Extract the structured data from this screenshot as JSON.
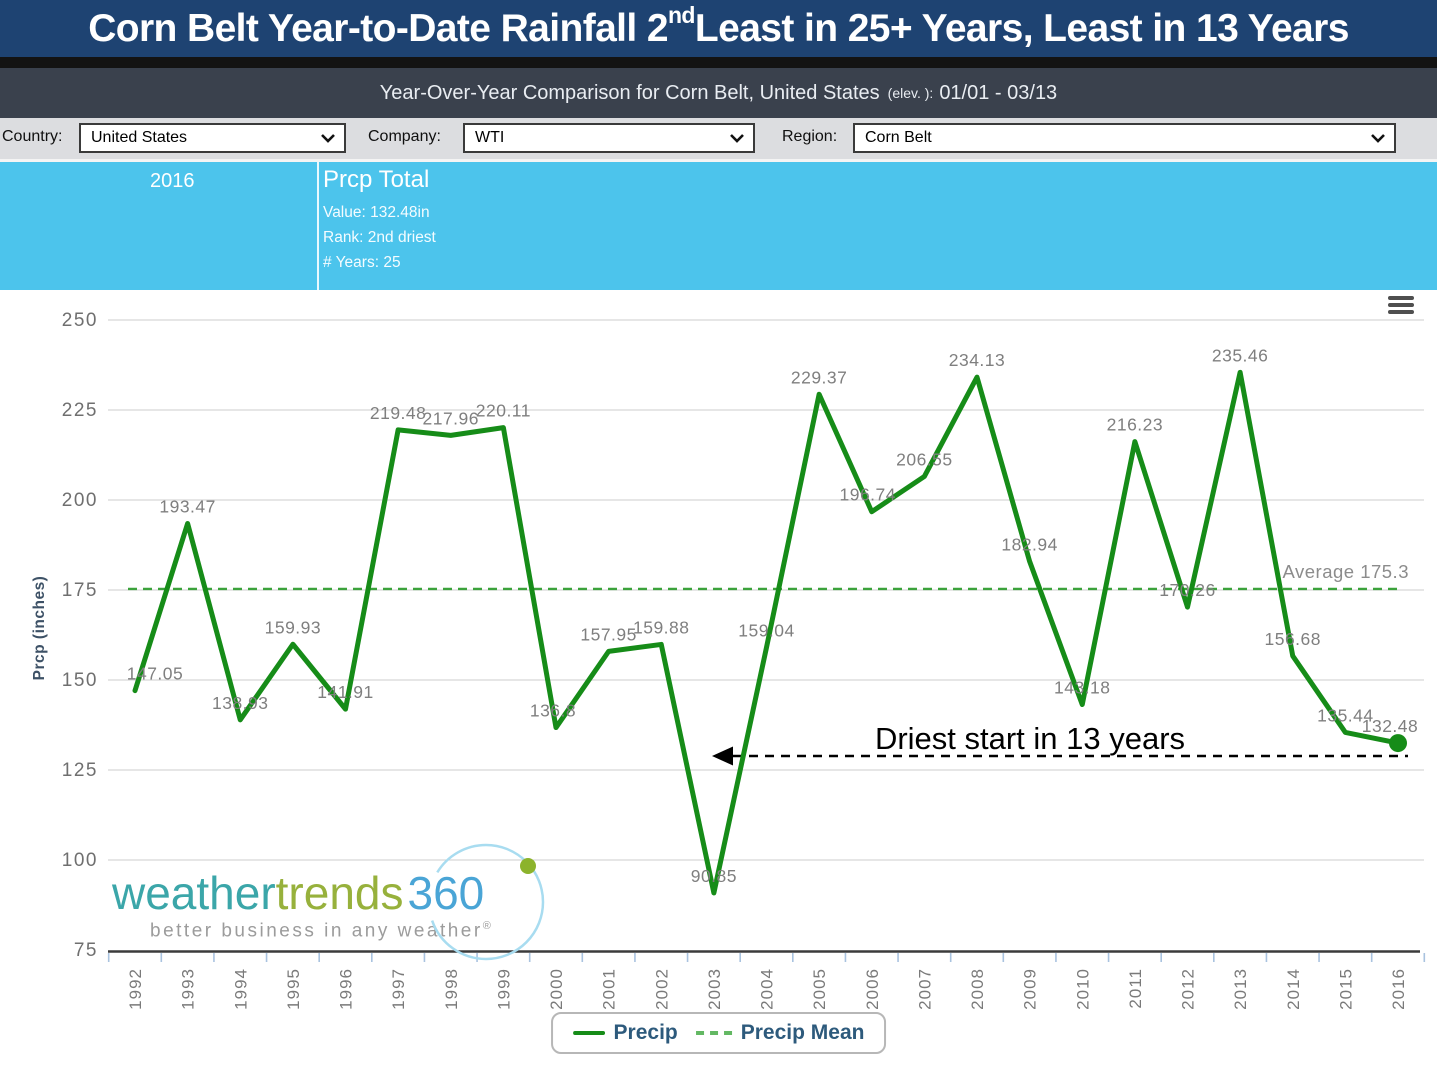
{
  "title": {
    "part1": "Corn Belt Year-to-Date Rainfall 2",
    "sup": "nd",
    "part2": " Least in 25+ Years, Least in 13 Years"
  },
  "subheader": {
    "text": "Year-Over-Year Comparison for Corn Belt, United States",
    "elev": "(elev. ):",
    "range": "01/01 - 03/13"
  },
  "controls": {
    "country_label": "Country:",
    "country_value": "United States",
    "company_label": "Company:",
    "company_value": "WTI",
    "region_label": "Region:",
    "region_value": "Corn Belt"
  },
  "tooltip": {
    "year": "2016",
    "title": "Prcp Total",
    "value": "Value: 132.48in",
    "rank": "Rank: 2nd driest",
    "years": "# Years: 25"
  },
  "annotation": {
    "text": "Driest start in 13 years"
  },
  "logo": {
    "word1": "weather",
    "word2": "trends",
    "word3": "360",
    "tagline": "better business in any weather",
    "reg": "®"
  },
  "legend": [
    {
      "label": "Precip",
      "style": "solid"
    },
    {
      "label": "Precip Mean",
      "style": "dashed"
    }
  ],
  "chart_data": {
    "type": "line",
    "title": "Year-Over-Year Comparison for Corn Belt, United States 01/01 - 03/13",
    "x": [
      "1992",
      "1993",
      "1994",
      "1995",
      "1996",
      "1997",
      "1998",
      "1999",
      "2000",
      "2001",
      "2002",
      "2003",
      "2004",
      "2005",
      "2006",
      "2007",
      "2008",
      "2009",
      "2010",
      "2011",
      "2012",
      "2013",
      "2014",
      "2015",
      "2016"
    ],
    "series": [
      {
        "name": "Precip",
        "values": [
          147.05,
          193.47,
          138.93,
          159.93,
          141.91,
          219.48,
          217.96,
          220.11,
          136.8,
          157.95,
          159.88,
          90.85,
          159.04,
          229.37,
          196.74,
          206.55,
          234.13,
          182.94,
          143.18,
          216.23,
          170.26,
          235.46,
          156.68,
          135.44,
          132.48
        ]
      }
    ],
    "mean": {
      "name": "Precip Mean",
      "value": 175.3,
      "label": "Average 175.3"
    },
    "ylabel": "Prcp (inches)",
    "xlabel": "",
    "ylim": [
      75,
      250
    ],
    "yticks": [
      75,
      100,
      125,
      150,
      175,
      200,
      225,
      250
    ],
    "grid": true,
    "legend_position": "bottom",
    "marker_last_point": true,
    "label_dx": {
      "1992": 20,
      "2000": -3,
      "2006": -4,
      "2016": -8
    },
    "colors": {
      "line": "#168c18",
      "mean": "#3ba23b",
      "value_labels": "#7f7f7f",
      "axis": "#3b3b3b",
      "grid": "#cdcdcd"
    }
  }
}
